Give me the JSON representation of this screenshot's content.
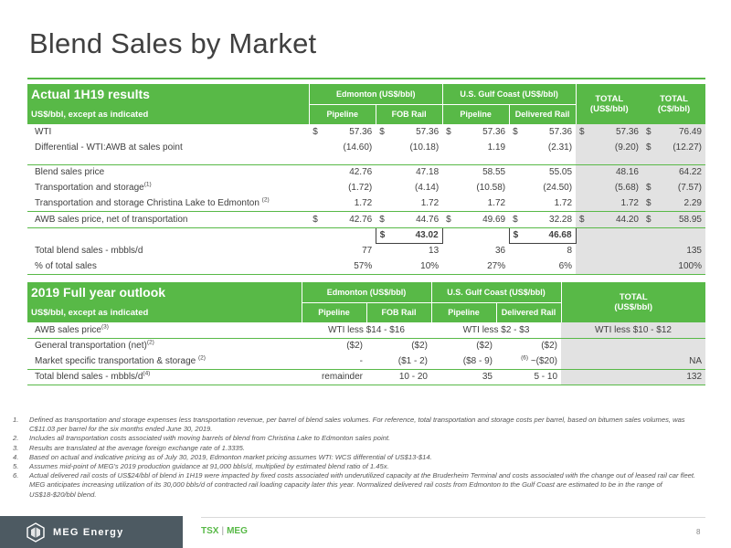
{
  "title": "Blend Sales by Market",
  "actual": {
    "title": "Actual 1H19 results",
    "subtitle": "US$/bbl, except as indicated",
    "groups": {
      "edmonton": "Edmonton (US$/bbl)",
      "usgc": "U.S. Gulf Coast (US$/bbl)"
    },
    "cols": {
      "pipeline": "Pipeline",
      "fob_rail": "FOB Rail",
      "pipeline2": "Pipeline",
      "delivered_rail": "Delivered Rail"
    },
    "total_usd": {
      "line1": "TOTAL",
      "line2": "(US$/bbl)"
    },
    "total_cad": {
      "line1": "TOTAL",
      "line2": "(C$/bbl)"
    },
    "dollar": "$",
    "rows": {
      "wti": {
        "label": "WTI",
        "e_pipe": "57.36",
        "e_fob": "57.36",
        "g_pipe": "57.36",
        "g_rail": "57.36",
        "t_usd": "57.36",
        "t_cad": "76.49"
      },
      "diff": {
        "label": "Differential - WTI:AWB at sales point",
        "e_pipe": "(14.60)",
        "e_fob": "(10.18)",
        "g_pipe": "1.19",
        "g_rail": "(2.31)",
        "t_usd": "(9.20)",
        "t_cad": "(12.27)"
      },
      "blend": {
        "label": "Blend sales price",
        "e_pipe": "42.76",
        "e_fob": "47.18",
        "g_pipe": "58.55",
        "g_rail": "55.05",
        "t_usd": "48.16",
        "t_cad": "64.22"
      },
      "transport": {
        "label": "Transportation and storage",
        "sup": "(1)",
        "e_pipe": "(1.72)",
        "e_fob": "(4.14)",
        "g_pipe": "(10.58)",
        "g_rail": "(24.50)",
        "t_usd": "(5.68)",
        "t_cad": "(7.57)"
      },
      "christina": {
        "label": "Transportation and storage Christina Lake to Edmonton",
        "sup": "(2)",
        "e_pipe": "1.72",
        "e_fob": "1.72",
        "g_pipe": "1.72",
        "g_rail": "1.72",
        "t_usd": "1.72",
        "t_cad": "2.29"
      },
      "awb": {
        "label": "AWB sales price, net of transportation",
        "e_pipe": "42.76",
        "e_fob": "44.76",
        "g_pipe": "49.69",
        "g_rail": "32.28",
        "t_usd": "44.20",
        "t_cad": "58.95"
      },
      "boxed": {
        "edmonton": "43.02",
        "usgc": "46.68"
      },
      "volumes": {
        "label": "Total blend sales - mbbls/d",
        "e_pipe": "77",
        "e_fob": "13",
        "g_pipe": "36",
        "g_rail": "8",
        "total": "135"
      },
      "pct": {
        "label": "% of total sales",
        "e_pipe": "57%",
        "e_fob": "10%",
        "g_pipe": "27%",
        "g_rail": "6%",
        "total": "100%"
      }
    }
  },
  "outlook": {
    "title": "2019 Full year outlook",
    "subtitle": "US$/bbl, except as indicated",
    "groups": {
      "edmonton": "Edmonton (US$/bbl)",
      "usgc": "U.S. Gulf Coast (US$/bbl)"
    },
    "cols": {
      "pipeline": "Pipeline",
      "fob_rail": "FOB Rail",
      "pipeline2": "Pipeline",
      "delivered_rail": "Delivered Rail"
    },
    "total": {
      "line1": "TOTAL",
      "line2": "(US$/bbl)"
    },
    "rows": {
      "awb": {
        "label": "AWB sales price",
        "sup": "(3)",
        "edmonton": "WTI less $14 - $16",
        "usgc": "WTI less $2 - $3",
        "total": "WTI less $10 - $12"
      },
      "gen": {
        "label": "General transportation (net)",
        "sup": "(2)",
        "e_pipe": "($2)",
        "e_fob": "($2)",
        "g_pipe": "($2)",
        "g_rail": "($2)"
      },
      "market": {
        "label": "Market specific transportation & storage",
        "sup": "(2)",
        "e_pipe": "-",
        "e_fob": "($1 - 2)",
        "g_pipe": "($8 - 9)",
        "g_rail_sup": "(6)",
        "g_rail": "~($20)",
        "total": "NA"
      },
      "volumes": {
        "label": "Total blend sales - mbbls/d",
        "sup": "(4)",
        "e_pipe": "remainder",
        "e_fob": "10 - 20",
        "g_pipe": "35",
        "g_rail": "5 - 10",
        "total": "132"
      }
    }
  },
  "notes": [
    {
      "k": "1.",
      "t": "Defined as transportation and storage expenses less transportation revenue, per barrel of blend sales volumes. For reference, total transportation and storage costs per barrel, based on bitumen sales volumes, was C$11.03 per barrel for the six months ended June 30, 2019."
    },
    {
      "k": "2.",
      "t": "Includes all transportation costs associated with moving barrels of blend from Christina Lake to Edmonton sales point."
    },
    {
      "k": "3.",
      "t": "Results are translated at the average foreign exchange rate of 1.3335."
    },
    {
      "k": "4.",
      "t": "Based on actual and indicative pricing as of July 30, 2019, Edmonton market pricing assumes WTI: WCS differential of US$13-$14."
    },
    {
      "k": "5.",
      "t": "Assumes mid-point of MEG's 2019 production guidance at 91,000 bbls/d, multiplied by estimated blend ratio of 1.45x."
    },
    {
      "k": "6.",
      "t": "Actual delivered rail costs of US$24/bbl of blend in 1H19 were impacted by fixed costs associated with underutilized capacity at the Bruderheim Terminal and costs associated with the change out of leased rail car fleet. MEG anticipates increasing utilization of its 30,000 bbls/d of contracted rail loading capacity later this year. Normalized delivered rail costs from Edmonton to the Gulf Coast are estimated to be in the range of US$18-$20/bbl blend."
    }
  ],
  "footer": {
    "logo": "MEG Energy",
    "ticker_a": "TSX",
    "sep": "|",
    "ticker_b": "MEG",
    "page": "8"
  },
  "colors": {
    "accent": "#58b947",
    "shade": "#e2e2e2",
    "logo_bg": "#4d5a62"
  }
}
